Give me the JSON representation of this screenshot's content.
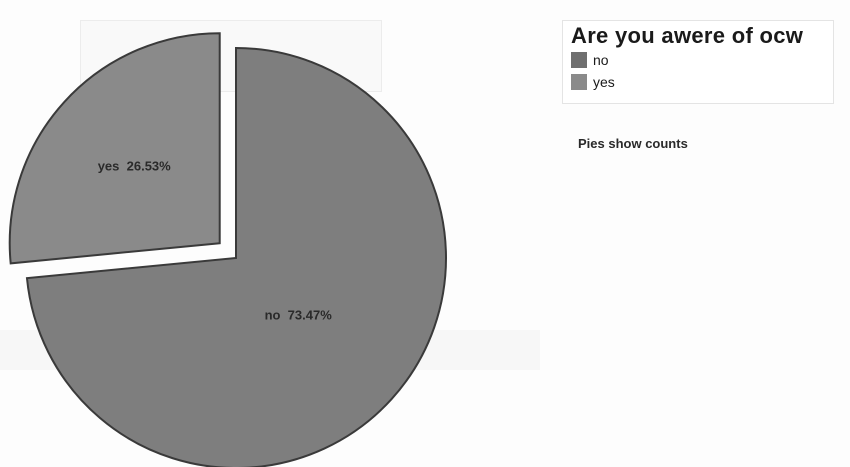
{
  "chart_data": {
    "type": "pie",
    "title": "",
    "legend_title": "Are you awere of ocw",
    "legend_position": "top-right",
    "footnote": "Pies show counts",
    "exploded": "yes",
    "slices": [
      {
        "label": "no",
        "percent": 73.47,
        "display": "no  73.47%",
        "color": "#7e7e7e"
      },
      {
        "label": "yes",
        "percent": 26.53,
        "display": "yes  26.53%",
        "color": "#8a8a8a"
      }
    ],
    "legend": [
      {
        "label": "no",
        "color": "#6f6f6f"
      },
      {
        "label": "yes",
        "color": "#8a8a8a"
      }
    ]
  },
  "colors": {
    "outline": "#3a3a3a",
    "background": "#ffffff"
  }
}
